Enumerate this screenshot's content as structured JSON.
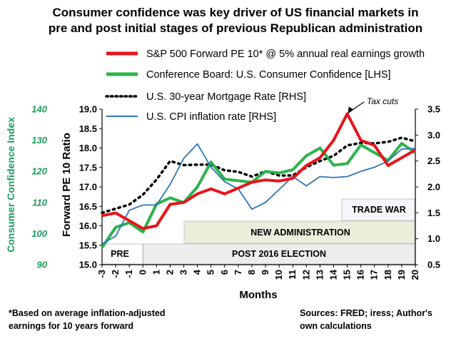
{
  "chart_data": {
    "type": "line",
    "title": [
      "Consumer confidence was key driver of US financial  markets in",
      "pre and post initial stages of previous Republican administration"
    ],
    "xlabel": "Months",
    "ylabel_left": "Forward PE 10 Ratio",
    "ylabel_left2": "Consumer Confidence Index",
    "ylabel_right": "",
    "x": [
      -3,
      -2,
      -1,
      0,
      1,
      2,
      3,
      4,
      5,
      6,
      7,
      8,
      9,
      10,
      11,
      12,
      13,
      14,
      15,
      16,
      17,
      18,
      19,
      20
    ],
    "ylim_left": [
      15.0,
      19.0
    ],
    "yticks_left": [
      "15.0",
      "15.5",
      "16.0",
      "16.5",
      "17.0",
      "17.5",
      "18.0",
      "18.5",
      "19.0"
    ],
    "ylim_left2": [
      90,
      140
    ],
    "yticks_left2": [
      "90",
      "100",
      "110",
      "120",
      "130",
      "140"
    ],
    "ylim_right": [
      0.5,
      3.5
    ],
    "yticks_right": [
      "0.5",
      "1.0",
      "1.5",
      "2.0",
      "2.5",
      "3.0",
      "3.5"
    ],
    "series": [
      {
        "name": "S&P 500 Forward PE 10* @ 5% annual real earnings growth",
        "axis": "left",
        "color": "#e8141b",
        "style": "solid",
        "values": [
          16.26,
          16.33,
          16.13,
          15.93,
          16.0,
          16.55,
          16.6,
          16.82,
          16.95,
          16.82,
          16.97,
          17.12,
          17.18,
          17.15,
          17.22,
          17.55,
          17.75,
          18.2,
          18.88,
          18.2,
          18.07,
          17.55,
          17.75,
          17.95
        ]
      },
      {
        "name": "Conference Board: U.S. Consumer Confidence [LHS]",
        "axis": "left2",
        "color": "#2db34a",
        "style": "solid",
        "values": [
          95.5,
          102.0,
          103.5,
          100.5,
          109.5,
          111.5,
          110.0,
          115.0,
          123.0,
          117.5,
          117.0,
          116.5,
          120.0,
          119.5,
          120.5,
          125.0,
          127.5,
          122.0,
          122.5,
          128.5,
          126.0,
          123.5,
          129.0,
          126.0
        ]
      },
      {
        "name": "U.S. 30-year Mortgage Rate [RHS]",
        "axis": "right",
        "color": "#000000",
        "style": "dotted",
        "values": [
          1.5,
          1.58,
          1.66,
          1.85,
          2.14,
          2.5,
          2.42,
          2.43,
          2.43,
          2.32,
          2.29,
          2.2,
          2.3,
          2.22,
          2.22,
          2.38,
          2.5,
          2.6,
          2.8,
          2.85,
          2.84,
          2.87,
          2.95,
          2.88
        ]
      },
      {
        "name": "U.S. CPI inflation rate [RHS]",
        "axis": "right",
        "color": "#2e75b6",
        "style": "solid",
        "values": [
          0.9,
          1.05,
          1.55,
          1.65,
          1.65,
          2.05,
          2.55,
          2.83,
          2.38,
          2.1,
          1.96,
          1.57,
          1.7,
          1.95,
          2.2,
          2.02,
          2.2,
          2.18,
          2.2,
          2.3,
          2.38,
          2.5,
          2.73,
          2.74
        ]
      }
    ],
    "bands": [
      {
        "label": "PRE",
        "from": -3,
        "to": 0
      },
      {
        "label": "POST 2016 ELECTION",
        "from": 0,
        "to": 20
      },
      {
        "label": "NEW ADMINISTRATION",
        "from": 3,
        "to": 20
      },
      {
        "label": "TRADE WAR",
        "from": 15,
        "to": 20
      }
    ],
    "annotation": {
      "label": "Tax cuts",
      "x": 15,
      "series": 0
    },
    "footnote": [
      "*Based  on average inflation-adjusted",
      "earnings for 10 years forward"
    ],
    "sources": [
      "Sources: FRED; iress; Author's",
      "own calculations"
    ],
    "legend_placement": "top-left",
    "grid": false
  }
}
